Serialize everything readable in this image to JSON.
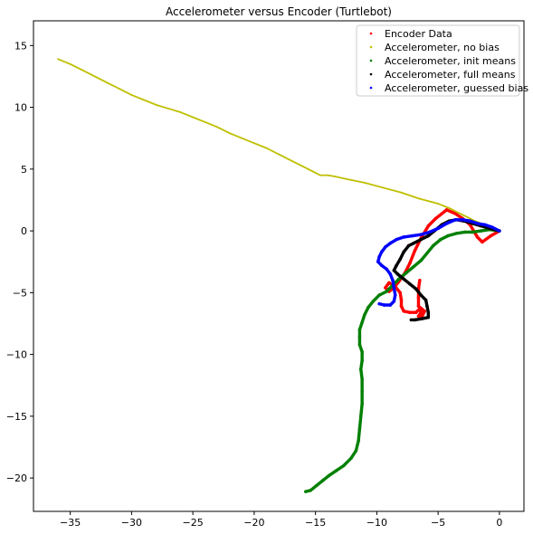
{
  "chart_data": {
    "type": "scatter",
    "title": "Accelerometer versus Encoder (Turtlebot)",
    "xlabel": "",
    "ylabel": "",
    "xlim": [
      -38,
      2
    ],
    "ylim": [
      -22.7,
      17
    ],
    "x_ticks": [
      -35,
      -30,
      -25,
      -20,
      -15,
      -10,
      -5,
      0
    ],
    "y_ticks": [
      -20,
      -15,
      -10,
      -5,
      0,
      5,
      10,
      15
    ],
    "grid": false,
    "legend_position": "top-right",
    "series": [
      {
        "name": "Encoder Data",
        "color": "#ff0000",
        "points": [
          [
            0.0,
            0.0
          ],
          [
            -0.7,
            -0.4
          ],
          [
            -1.4,
            -0.9
          ],
          [
            -1.8,
            -0.5
          ],
          [
            -2.4,
            0.5
          ],
          [
            -3.0,
            1.0
          ],
          [
            -3.6,
            1.4
          ],
          [
            -4.3,
            1.7
          ],
          [
            -5.2,
            1.0
          ],
          [
            -5.8,
            0.4
          ],
          [
            -6.4,
            -0.6
          ],
          [
            -6.9,
            -1.6
          ],
          [
            -7.3,
            -2.6
          ],
          [
            -7.7,
            -3.4
          ],
          [
            -8.2,
            -4.1
          ],
          [
            -8.6,
            -4.6
          ],
          [
            -9.0,
            -4.9
          ],
          [
            -9.3,
            -4.6
          ],
          [
            -9.0,
            -4.2
          ],
          [
            -8.5,
            -4.5
          ],
          [
            -8.1,
            -5.0
          ],
          [
            -8.0,
            -5.6
          ],
          [
            -8.0,
            -6.1
          ],
          [
            -7.8,
            -6.5
          ],
          [
            -7.3,
            -6.6
          ],
          [
            -6.8,
            -6.6
          ],
          [
            -6.5,
            -6.3
          ],
          [
            -6.4,
            -6.6
          ],
          [
            -6.6,
            -6.9
          ],
          [
            -6.3,
            -6.9
          ],
          [
            -6.1,
            -6.5
          ],
          [
            -6.6,
            -6.1
          ],
          [
            -6.6,
            -5.4
          ],
          [
            -6.6,
            -4.7
          ],
          [
            -6.5,
            -4.0
          ]
        ]
      },
      {
        "name": "Accelerometer, no bias",
        "color": "#bfbf00",
        "points": [
          [
            -36.0,
            13.9
          ],
          [
            -35.0,
            13.5
          ],
          [
            -34.0,
            13.0
          ],
          [
            -33.0,
            12.5
          ],
          [
            -32.0,
            12.0
          ],
          [
            -31.0,
            11.5
          ],
          [
            -30.0,
            11.0
          ],
          [
            -29.0,
            10.6
          ],
          [
            -28.0,
            10.2
          ],
          [
            -27.0,
            9.9
          ],
          [
            -26.0,
            9.6
          ],
          [
            -25.0,
            9.2
          ],
          [
            -24.0,
            8.8
          ],
          [
            -23.0,
            8.4
          ],
          [
            -22.0,
            7.9
          ],
          [
            -21.0,
            7.5
          ],
          [
            -20.0,
            7.1
          ],
          [
            -19.0,
            6.7
          ],
          [
            -18.0,
            6.2
          ],
          [
            -17.0,
            5.7
          ],
          [
            -16.0,
            5.2
          ],
          [
            -15.2,
            4.8
          ],
          [
            -14.6,
            4.5
          ],
          [
            -14.0,
            4.5
          ],
          [
            -13.4,
            4.4
          ],
          [
            -12.5,
            4.2
          ],
          [
            -11.0,
            3.9
          ],
          [
            -9.5,
            3.5
          ],
          [
            -8.0,
            3.1
          ],
          [
            -6.5,
            2.6
          ],
          [
            -5.0,
            2.2
          ],
          [
            -4.0,
            1.8
          ],
          [
            -3.0,
            1.3
          ],
          [
            -2.0,
            0.8
          ],
          [
            -1.0,
            0.4
          ],
          [
            0.0,
            0.0
          ]
        ]
      },
      {
        "name": "Accelerometer, init means",
        "color": "#008000",
        "points": [
          [
            0.0,
            0.0
          ],
          [
            -0.8,
            0.1
          ],
          [
            -1.5,
            0.0
          ],
          [
            -2.2,
            -0.1
          ],
          [
            -2.8,
            -0.1
          ],
          [
            -3.5,
            -0.2
          ],
          [
            -4.2,
            -0.4
          ],
          [
            -4.8,
            -0.7
          ],
          [
            -5.4,
            -1.2
          ],
          [
            -5.9,
            -1.8
          ],
          [
            -6.4,
            -2.4
          ],
          [
            -7.0,
            -2.9
          ],
          [
            -7.6,
            -3.4
          ],
          [
            -8.2,
            -3.9
          ],
          [
            -8.7,
            -4.4
          ],
          [
            -9.2,
            -4.9
          ],
          [
            -9.8,
            -5.2
          ],
          [
            -10.3,
            -5.7
          ],
          [
            -10.7,
            -6.2
          ],
          [
            -11.0,
            -6.8
          ],
          [
            -11.2,
            -7.4
          ],
          [
            -11.4,
            -8.0
          ],
          [
            -11.4,
            -8.6
          ],
          [
            -11.4,
            -9.2
          ],
          [
            -11.2,
            -9.8
          ],
          [
            -11.2,
            -10.5
          ],
          [
            -11.3,
            -11.2
          ],
          [
            -11.2,
            -12.0
          ],
          [
            -11.2,
            -13.0
          ],
          [
            -11.2,
            -14.0
          ],
          [
            -11.3,
            -15.0
          ],
          [
            -11.4,
            -16.0
          ],
          [
            -11.5,
            -17.0
          ],
          [
            -11.7,
            -17.8
          ],
          [
            -12.1,
            -18.4
          ],
          [
            -12.7,
            -19.0
          ],
          [
            -13.3,
            -19.4
          ],
          [
            -13.9,
            -19.8
          ],
          [
            -14.4,
            -20.2
          ],
          [
            -14.9,
            -20.6
          ],
          [
            -15.4,
            -21.0
          ],
          [
            -15.8,
            -21.1
          ]
        ]
      },
      {
        "name": "Accelerometer, full means",
        "color": "#000000",
        "points": [
          [
            0.0,
            0.0
          ],
          [
            -0.8,
            0.2
          ],
          [
            -1.5,
            0.4
          ],
          [
            -2.2,
            0.6
          ],
          [
            -2.9,
            0.8
          ],
          [
            -3.5,
            0.9
          ],
          [
            -4.1,
            0.8
          ],
          [
            -4.7,
            0.5
          ],
          [
            -5.3,
            0.0
          ],
          [
            -5.8,
            -0.4
          ],
          [
            -6.4,
            -0.7
          ],
          [
            -7.0,
            -1.0
          ],
          [
            -7.4,
            -1.2
          ],
          [
            -7.8,
            -1.7
          ],
          [
            -8.1,
            -2.3
          ],
          [
            -8.4,
            -2.8
          ],
          [
            -8.6,
            -3.2
          ],
          [
            -8.3,
            -3.5
          ],
          [
            -7.8,
            -3.9
          ],
          [
            -7.3,
            -4.3
          ],
          [
            -6.8,
            -4.7
          ],
          [
            -6.4,
            -5.2
          ],
          [
            -6.0,
            -5.6
          ],
          [
            -5.9,
            -6.1
          ],
          [
            -5.8,
            -6.6
          ],
          [
            -5.8,
            -7.0
          ],
          [
            -6.3,
            -7.1
          ],
          [
            -6.9,
            -7.2
          ],
          [
            -7.2,
            -7.2
          ]
        ]
      },
      {
        "name": "Accelerometer, guessed bias",
        "color": "#0000ff",
        "points": [
          [
            0.0,
            0.0
          ],
          [
            -0.6,
            0.3
          ],
          [
            -1.2,
            0.5
          ],
          [
            -1.8,
            0.6
          ],
          [
            -2.4,
            0.8
          ],
          [
            -3.0,
            0.9
          ],
          [
            -3.6,
            0.9
          ],
          [
            -4.3,
            0.6
          ],
          [
            -5.0,
            0.2
          ],
          [
            -5.7,
            -0.1
          ],
          [
            -6.4,
            -0.3
          ],
          [
            -7.1,
            -0.4
          ],
          [
            -7.8,
            -0.5
          ],
          [
            -8.4,
            -0.7
          ],
          [
            -8.9,
            -1.0
          ],
          [
            -9.3,
            -1.3
          ],
          [
            -9.6,
            -1.7
          ],
          [
            -9.8,
            -2.1
          ],
          [
            -9.9,
            -2.5
          ],
          [
            -9.6,
            -2.8
          ],
          [
            -9.2,
            -3.1
          ],
          [
            -8.9,
            -3.5
          ],
          [
            -8.7,
            -4.0
          ],
          [
            -8.6,
            -4.6
          ],
          [
            -8.5,
            -5.2
          ],
          [
            -8.6,
            -5.7
          ],
          [
            -8.9,
            -6.0
          ],
          [
            -9.4,
            -6.0
          ],
          [
            -9.8,
            -5.9
          ]
        ]
      }
    ]
  }
}
